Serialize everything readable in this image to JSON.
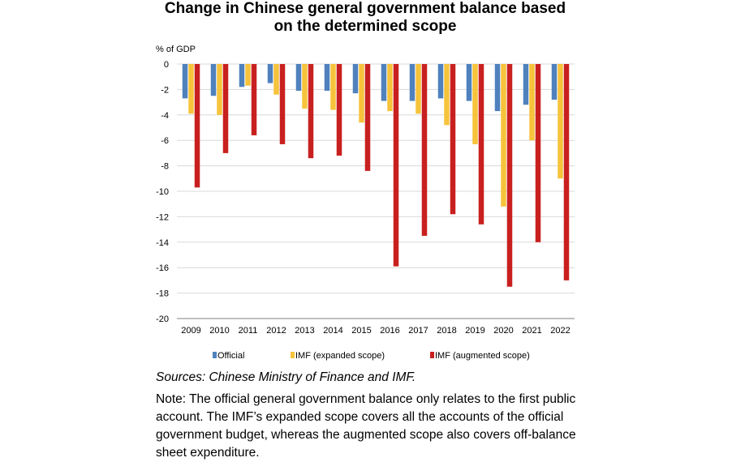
{
  "chart_data": {
    "type": "bar",
    "title_line1": "Change in Chinese general government balance based",
    "title_line2": "on the determined scope",
    "ylabel": "% of GDP",
    "ylim": [
      -20,
      0
    ],
    "yticks": [
      0,
      -2,
      -4,
      -6,
      -8,
      -10,
      -12,
      -14,
      -16,
      -18,
      -20
    ],
    "grid": true,
    "legend_position": "bottom",
    "categories": [
      "2009",
      "2010",
      "2011",
      "2012",
      "2013",
      "2014",
      "2015",
      "2016",
      "2017",
      "2018",
      "2019",
      "2020",
      "2021",
      "2022"
    ],
    "series": [
      {
        "name": "Official",
        "color": "#4f81bd",
        "values": [
          -2.7,
          -2.5,
          -1.8,
          -1.5,
          -2.1,
          -2.1,
          -2.3,
          -2.9,
          -2.9,
          -2.7,
          -2.9,
          -3.7,
          -3.2,
          -2.8
        ]
      },
      {
        "name": "IMF (expanded scope)",
        "color": "#f6c33b",
        "values": [
          -3.9,
          -4.0,
          -1.7,
          -2.4,
          -3.5,
          -3.6,
          -4.6,
          -3.7,
          -3.9,
          -4.8,
          -6.3,
          -11.2,
          -6.0,
          -9.0
        ]
      },
      {
        "name": "IMF (augmented scope)",
        "color": "#c8201f",
        "values": [
          -9.7,
          -7.0,
          -5.6,
          -6.3,
          -7.4,
          -7.2,
          -8.4,
          -15.9,
          -13.5,
          -11.8,
          -12.6,
          -17.5,
          -14.0,
          -17.0
        ]
      }
    ]
  },
  "footer": {
    "sources": "Sources: Chinese Ministry of Finance and IMF.",
    "note": "Note: The official general government balance only relates to the first public account. The IMF’s expanded scope covers all the accounts of the official government budget, whereas the augmented scope also covers off-balance sheet expenditure."
  }
}
